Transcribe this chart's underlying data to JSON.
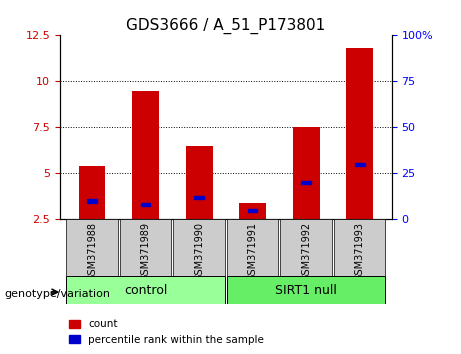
{
  "title": "GDS3666 / A_51_P173801",
  "samples": [
    "GSM371988",
    "GSM371989",
    "GSM371990",
    "GSM371991",
    "GSM371992",
    "GSM371993"
  ],
  "red_bar_heights": [
    5.4,
    9.5,
    6.5,
    3.4,
    7.5,
    11.8
  ],
  "blue_pct": [
    10,
    8,
    12,
    5,
    20,
    30
  ],
  "left_ylim": [
    2.5,
    12.5
  ],
  "right_ylim": [
    0,
    100
  ],
  "left_yticks": [
    2.5,
    5.0,
    7.5,
    10.0,
    12.5
  ],
  "right_yticks": [
    0,
    25,
    50,
    75,
    100
  ],
  "left_ytick_labels": [
    "2.5",
    "5",
    "7.5",
    "10",
    "12.5"
  ],
  "right_ytick_labels": [
    "0",
    "25",
    "50",
    "75",
    "100%"
  ],
  "grid_yticks": [
    5.0,
    7.5,
    10.0
  ],
  "control_label": "control",
  "sirt1_label": "SIRT1 null",
  "genotype_label": "genotype/variation",
  "legend_count": "count",
  "legend_pct": "percentile rank within the sample",
  "bar_color": "#cc0000",
  "blue_color": "#0000cc",
  "control_color": "#99ff99",
  "sirt1_color": "#66ee66",
  "label_area_color": "#cccccc",
  "bar_width": 0.5
}
